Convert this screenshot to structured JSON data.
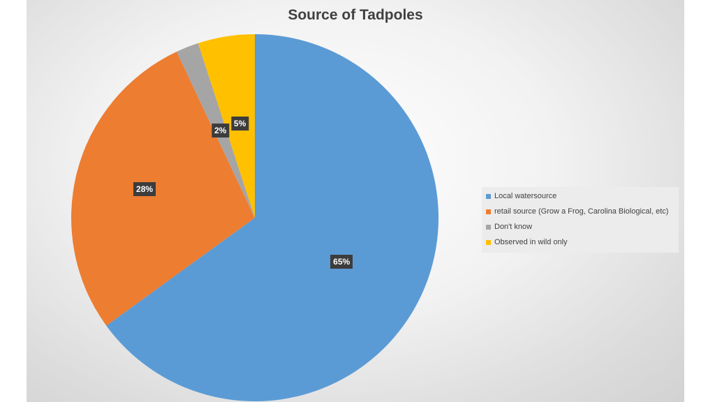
{
  "chart_data": {
    "type": "pie",
    "title": "Source of Tadpoles",
    "categories": [
      "Local watersource",
      "retail source (Grow a Frog, Carolina Biological, etc)",
      "Don't know",
      "Observed in wild only"
    ],
    "values": [
      65,
      28,
      2,
      5
    ],
    "data_labels": [
      "65%",
      "28%",
      "2%",
      "5%"
    ],
    "colors": [
      "#5b9bd5",
      "#ed7d31",
      "#a5a5a5",
      "#ffc000"
    ],
    "legend_position": "right",
    "start_angle": "12 o'clock",
    "direction": "clockwise"
  }
}
